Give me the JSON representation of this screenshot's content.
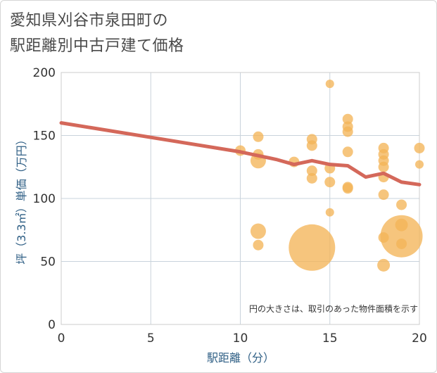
{
  "title_lines": [
    "愛知県刈谷市泉田町の",
    "駅距離別中古戸建て価格"
  ],
  "note": "円の大きさは、取引のあった物件面積を示す",
  "colors": {
    "bubble": "#f3b558",
    "trend": "#d4685a",
    "grid": "#c9d3dc",
    "plot_border": "#cccccc"
  },
  "chart_data": {
    "type": "scatter",
    "xlabel": "駅距離（分）",
    "ylabel": "坪（3.3㎡）単価（万円）",
    "xlim": [
      0,
      20
    ],
    "ylim": [
      0,
      200
    ],
    "xticks": [
      0,
      5,
      10,
      15,
      20
    ],
    "yticks": [
      0,
      50,
      100,
      150,
      200
    ],
    "grid": true,
    "points": [
      {
        "x": 10,
        "y": 138,
        "size": "small"
      },
      {
        "x": 11,
        "y": 149,
        "size": "small"
      },
      {
        "x": 11,
        "y": 135,
        "size": "small"
      },
      {
        "x": 11,
        "y": 130,
        "size": "medium"
      },
      {
        "x": 11,
        "y": 74,
        "size": "medium"
      },
      {
        "x": 11,
        "y": 63,
        "size": "small"
      },
      {
        "x": 13,
        "y": 129,
        "size": "small"
      },
      {
        "x": 14,
        "y": 147,
        "size": "small"
      },
      {
        "x": 14,
        "y": 142,
        "size": "small"
      },
      {
        "x": 14,
        "y": 122,
        "size": "small"
      },
      {
        "x": 14,
        "y": 116,
        "size": "small"
      },
      {
        "x": 14,
        "y": 61,
        "size": "xlarge"
      },
      {
        "x": 15,
        "y": 191,
        "size": "xsmall"
      },
      {
        "x": 15,
        "y": 124,
        "size": "small"
      },
      {
        "x": 15,
        "y": 113,
        "size": "small"
      },
      {
        "x": 15,
        "y": 89,
        "size": "xsmall"
      },
      {
        "x": 16,
        "y": 163,
        "size": "small"
      },
      {
        "x": 16,
        "y": 157,
        "size": "small"
      },
      {
        "x": 16,
        "y": 153,
        "size": "small"
      },
      {
        "x": 16,
        "y": 137,
        "size": "small"
      },
      {
        "x": 16,
        "y": 109,
        "size": "small"
      },
      {
        "x": 16,
        "y": 108,
        "size": "small"
      },
      {
        "x": 18,
        "y": 140,
        "size": "small"
      },
      {
        "x": 18,
        "y": 135,
        "size": "small"
      },
      {
        "x": 18,
        "y": 130,
        "size": "small"
      },
      {
        "x": 18,
        "y": 125,
        "size": "small"
      },
      {
        "x": 18,
        "y": 117,
        "size": "small"
      },
      {
        "x": 18,
        "y": 103,
        "size": "small"
      },
      {
        "x": 18,
        "y": 69,
        "size": "small"
      },
      {
        "x": 18,
        "y": 47,
        "size": "medium-small"
      },
      {
        "x": 19,
        "y": 95,
        "size": "small"
      },
      {
        "x": 19,
        "y": 79,
        "size": "medium-small"
      },
      {
        "x": 19,
        "y": 70,
        "size": "xlarge-2"
      },
      {
        "x": 19,
        "y": 64,
        "size": "small"
      },
      {
        "x": 20,
        "y": 140,
        "size": "small"
      },
      {
        "x": 20,
        "y": 127,
        "size": "xsmall"
      }
    ],
    "trend": {
      "x": [
        0,
        10,
        11,
        12,
        13,
        14,
        15,
        16,
        17,
        18,
        19,
        20
      ],
      "y": [
        160,
        137,
        134,
        131,
        127,
        130,
        127,
        126,
        117,
        120,
        113,
        111
      ]
    }
  }
}
